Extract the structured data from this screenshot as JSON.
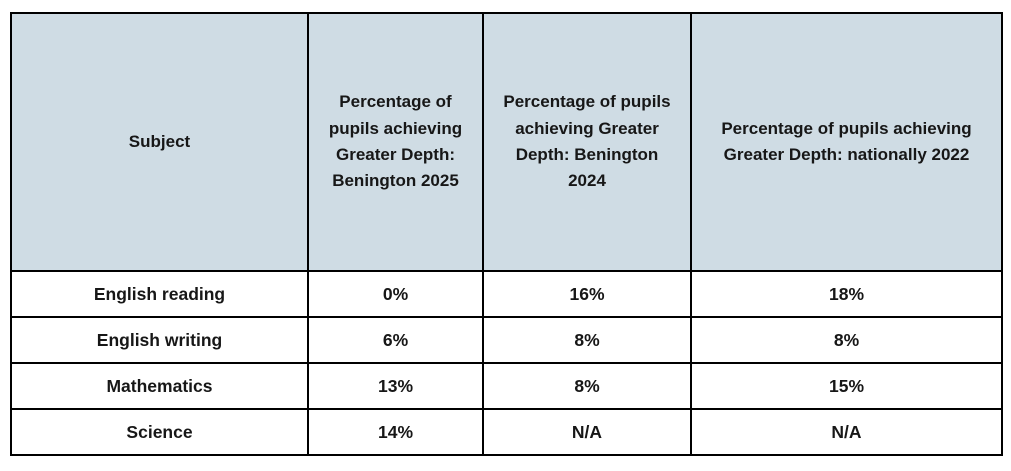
{
  "table": {
    "columns": [
      {
        "label": "Subject"
      },
      {
        "label": "Percentage of pupils achieving Greater Depth: Benington 2025"
      },
      {
        "label": "Percentage of pupils achieving Greater Depth: Benington 2024"
      },
      {
        "label": "Percentage of pupils achieving Greater Depth: nationally 2022"
      }
    ],
    "rows": [
      {
        "cells": [
          "English reading",
          "0%",
          "16%",
          "18%"
        ]
      },
      {
        "cells": [
          "English writing",
          "6%",
          "8%",
          "8%"
        ]
      },
      {
        "cells": [
          "Mathematics",
          "13%",
          "8%",
          "15%"
        ]
      },
      {
        "cells": [
          "Science",
          "14%",
          "N/A",
          "N/A"
        ]
      }
    ]
  },
  "colors": {
    "header_background": "#cfdce4",
    "na_cell_background": "#bfbfbf",
    "border": "#000000",
    "text": "#171717"
  }
}
